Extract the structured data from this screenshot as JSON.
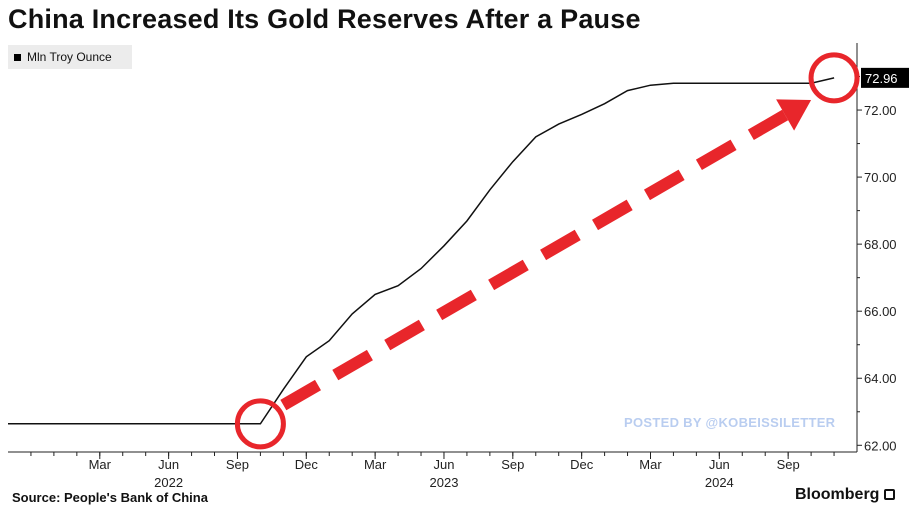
{
  "title": "China Increased Its Gold Reserves After a Pause",
  "source": "Source: People's Bank of China",
  "brand": "Bloomberg",
  "watermark": "POSTED BY @KOBEISSILETTER",
  "colors": {
    "line": "#111111",
    "highlight": "#e8262b",
    "last_value_box": "#000000",
    "watermark": "#b9cdf0",
    "legend_bg": "#ececec"
  },
  "icons": [
    "bloomberg-logo-icon",
    "legend-square-icon"
  ],
  "chart_data": {
    "type": "line",
    "title": "China Increased Its Gold Reserves After a Pause",
    "series": [
      {
        "name": "Mln Troy Ounce",
        "x": [
          "2021-11",
          "2021-12",
          "2022-01",
          "2022-02",
          "2022-03",
          "2022-04",
          "2022-05",
          "2022-06",
          "2022-07",
          "2022-08",
          "2022-09",
          "2022-10",
          "2022-11",
          "2022-12",
          "2023-01",
          "2023-02",
          "2023-03",
          "2023-04",
          "2023-05",
          "2023-06",
          "2023-07",
          "2023-08",
          "2023-09",
          "2023-10",
          "2023-11",
          "2023-12",
          "2024-01",
          "2024-02",
          "2024-03",
          "2024-04",
          "2024-05",
          "2024-06",
          "2024-07",
          "2024-08",
          "2024-09",
          "2024-10",
          "2024-11"
        ],
        "values": [
          62.64,
          62.64,
          62.64,
          62.64,
          62.64,
          62.64,
          62.64,
          62.64,
          62.64,
          62.64,
          62.64,
          62.64,
          63.67,
          64.64,
          65.12,
          65.92,
          66.5,
          66.76,
          67.27,
          67.95,
          68.69,
          69.62,
          70.46,
          71.2,
          71.58,
          71.87,
          72.19,
          72.58,
          72.74,
          72.8,
          72.8,
          72.8,
          72.8,
          72.8,
          72.8,
          72.8,
          72.96
        ]
      }
    ],
    "last_value_label": "72.96",
    "ylim": [
      61.8,
      74.0
    ],
    "yticks": [
      "62.00",
      "64.00",
      "66.00",
      "68.00",
      "70.00",
      "72.00"
    ],
    "xticks": [
      {
        "date": "2022-03",
        "label": "Mar",
        "year": ""
      },
      {
        "date": "2022-06",
        "label": "Jun",
        "year": "2022"
      },
      {
        "date": "2022-09",
        "label": "Sep",
        "year": ""
      },
      {
        "date": "2022-12",
        "label": "Dec",
        "year": ""
      },
      {
        "date": "2023-03",
        "label": "Mar",
        "year": ""
      },
      {
        "date": "2023-06",
        "label": "Jun",
        "year": "2023"
      },
      {
        "date": "2023-09",
        "label": "Sep",
        "year": ""
      },
      {
        "date": "2023-12",
        "label": "Dec",
        "year": ""
      },
      {
        "date": "2024-03",
        "label": "Mar",
        "year": ""
      },
      {
        "date": "2024-06",
        "label": "Jun",
        "year": "2024"
      },
      {
        "date": "2024-09",
        "label": "Sep",
        "year": ""
      }
    ],
    "xlim": [
      "2021-11",
      "2024-12"
    ],
    "legend": {
      "placement": "top-left",
      "entries": [
        "Mln Troy Ounce"
      ]
    },
    "grid": false,
    "annotations": [
      {
        "type": "circle",
        "date": "2022-10",
        "value": 62.64
      },
      {
        "type": "circle",
        "date": "2024-11",
        "value": 72.96
      },
      {
        "type": "dashed-arrow",
        "from_date": "2022-11",
        "from_value": 63.2,
        "to_date": "2024-10",
        "to_value": 72.3
      }
    ]
  }
}
